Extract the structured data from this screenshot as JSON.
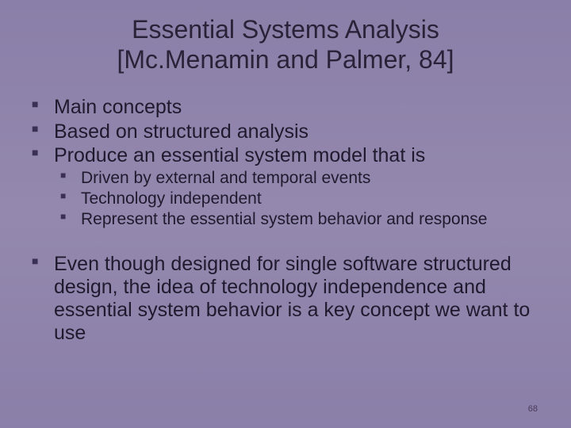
{
  "background": {
    "gradient_top": "#8a7fa8",
    "gradient_mid": "#9488ae",
    "gradient_bottom": "#8a7fa8"
  },
  "title": {
    "line1": "Essential Systems Analysis",
    "line2": "[Mc.Menamin and Palmer, 84]",
    "color": "#2a2238",
    "fontsize": 32
  },
  "bullets": {
    "level1_fontsize": 25,
    "level2_fontsize": 21,
    "text_color": "#1f1a2e",
    "marker_color": "#3a2f55",
    "items": [
      {
        "level": 1,
        "text": "Main concepts"
      },
      {
        "level": 1,
        "text": "Based on structured analysis"
      },
      {
        "level": 1,
        "text": "Produce an essential system model that is"
      },
      {
        "level": 2,
        "text": "Driven by external and temporal events"
      },
      {
        "level": 2,
        "text": "Technology independent"
      },
      {
        "level": 2,
        "text": "Represent the essential system behavior and response"
      },
      {
        "level": 0,
        "text": ""
      },
      {
        "level": 1,
        "text": "Even though designed for single software structured design, the idea of technology independence and essential system behavior is a key concept we want to use"
      }
    ]
  },
  "page_number": "68"
}
